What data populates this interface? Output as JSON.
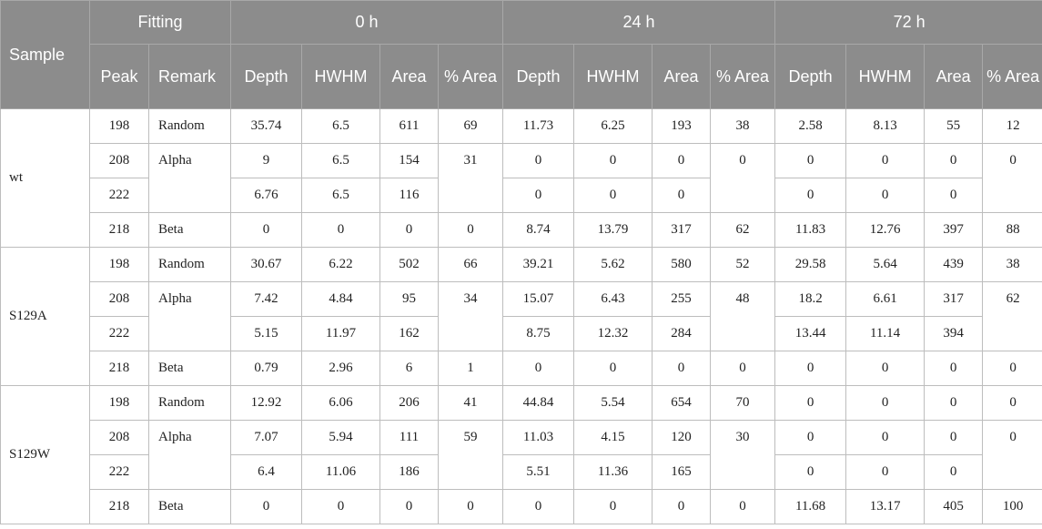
{
  "header": {
    "sample": "Sample",
    "fitting": "Fitting",
    "peak": "Peak",
    "remark": "Remark",
    "times": [
      "0 h",
      "24 h",
      "72 h"
    ],
    "depth": "Depth",
    "hwhm": "HWHM",
    "area": "Area",
    "parea": "% Area"
  },
  "samples": [
    {
      "name": "wt",
      "rows": [
        {
          "peak": "198",
          "remark": "Random",
          "t": [
            [
              "35.74",
              "6.5",
              "611",
              "69"
            ],
            [
              "11.73",
              "6.25",
              "193",
              "38"
            ],
            [
              "2.58",
              "8.13",
              "55",
              "12"
            ]
          ]
        },
        {
          "peak": "208",
          "remark": "Alpha",
          "t": [
            [
              "9",
              "6.5",
              "154",
              "31"
            ],
            [
              "0",
              "0",
              "0",
              "0"
            ],
            [
              "0",
              "0",
              "0",
              "0"
            ]
          ]
        },
        {
          "peak": "222",
          "remark": "",
          "t": [
            [
              "6.76",
              "6.5",
              "116",
              ""
            ],
            [
              "0",
              "0",
              "0",
              ""
            ],
            [
              "0",
              "0",
              "0",
              ""
            ]
          ]
        },
        {
          "peak": "218",
          "remark": "Beta",
          "t": [
            [
              "0",
              "0",
              "0",
              "0"
            ],
            [
              "8.74",
              "13.79",
              "317",
              "62"
            ],
            [
              "11.83",
              "12.76",
              "397",
              "88"
            ]
          ]
        }
      ]
    },
    {
      "name": "S129A",
      "rows": [
        {
          "peak": "198",
          "remark": "Random",
          "t": [
            [
              "30.67",
              "6.22",
              "502",
              "66"
            ],
            [
              "39.21",
              "5.62",
              "580",
              "52"
            ],
            [
              "29.58",
              "5.64",
              "439",
              "38"
            ]
          ]
        },
        {
          "peak": "208",
          "remark": "Alpha",
          "t": [
            [
              "7.42",
              "4.84",
              "95",
              "34"
            ],
            [
              "15.07",
              "6.43",
              "255",
              "48"
            ],
            [
              "18.2",
              "6.61",
              "317",
              "62"
            ]
          ]
        },
        {
          "peak": "222",
          "remark": "",
          "t": [
            [
              "5.15",
              "11.97",
              "162",
              ""
            ],
            [
              "8.75",
              "12.32",
              "284",
              ""
            ],
            [
              "13.44",
              "11.14",
              "394",
              ""
            ]
          ]
        },
        {
          "peak": "218",
          "remark": "Beta",
          "t": [
            [
              "0.79",
              "2.96",
              "6",
              "1"
            ],
            [
              "0",
              "0",
              "0",
              "0"
            ],
            [
              "0",
              "0",
              "0",
              "0"
            ]
          ]
        }
      ]
    },
    {
      "name": "S129W",
      "rows": [
        {
          "peak": "198",
          "remark": "Random",
          "t": [
            [
              "12.92",
              "6.06",
              "206",
              "41"
            ],
            [
              "44.84",
              "5.54",
              "654",
              "70"
            ],
            [
              "0",
              "0",
              "0",
              "0"
            ]
          ]
        },
        {
          "peak": "208",
          "remark": "Alpha",
          "t": [
            [
              "7.07",
              "5.94",
              "111",
              "59"
            ],
            [
              "11.03",
              "4.15",
              "120",
              "30"
            ],
            [
              "0",
              "0",
              "0",
              "0"
            ]
          ]
        },
        {
          "peak": "222",
          "remark": "",
          "t": [
            [
              "6.4",
              "11.06",
              "186",
              ""
            ],
            [
              "5.51",
              "11.36",
              "165",
              ""
            ],
            [
              "0",
              "0",
              "0",
              ""
            ]
          ]
        },
        {
          "peak": "218",
          "remark": "Beta",
          "t": [
            [
              "0",
              "0",
              "0",
              "0"
            ],
            [
              "0",
              "0",
              "0",
              "0"
            ],
            [
              "11.68",
              "13.17",
              "405",
              "100"
            ]
          ]
        }
      ]
    }
  ]
}
